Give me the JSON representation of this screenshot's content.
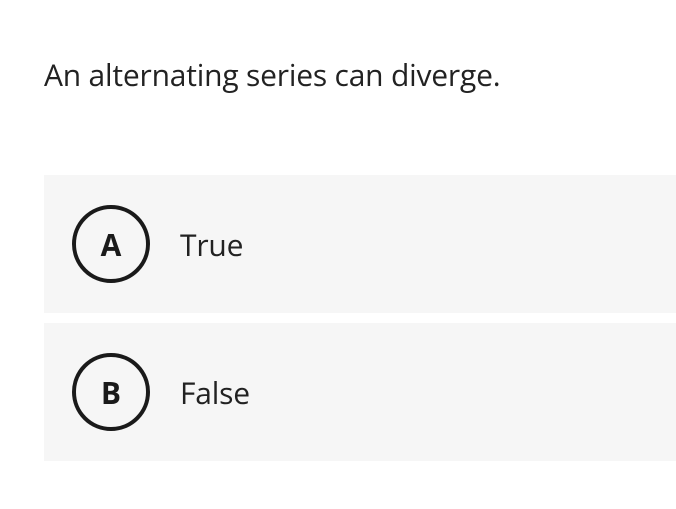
{
  "question": {
    "text": "An alternating series can diverge."
  },
  "options": [
    {
      "letter": "A",
      "label": "True"
    },
    {
      "letter": "B",
      "label": "False"
    }
  ],
  "colors": {
    "background": "#ffffff",
    "option_background": "#f6f6f6",
    "text": "#222222",
    "circle_border": "#1a1a1a"
  }
}
